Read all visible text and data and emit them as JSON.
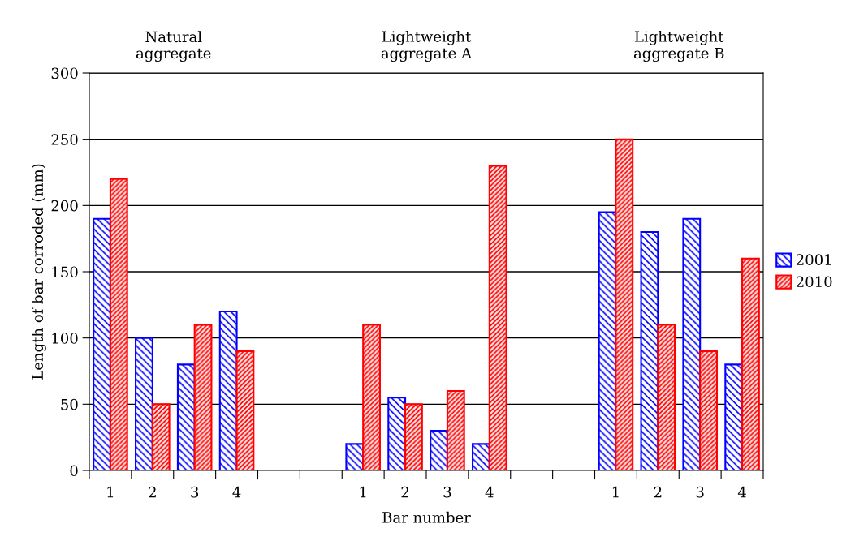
{
  "chart_data": {
    "type": "bar",
    "xlabel": "Bar number",
    "ylabel": "Length of bar corroded (mm)",
    "annotations": [
      "Natural\naggregate",
      "Lightweight\naggregate A",
      "Lightweight\naggregate B"
    ],
    "categories": [
      "1",
      "2",
      "3",
      "4",
      null,
      null,
      "1",
      "2",
      "3",
      "4",
      null,
      null,
      "1",
      "2",
      "3",
      "4"
    ],
    "series": [
      {
        "name": "2001",
        "color": "#0000ff",
        "values": [
          190,
          100,
          80,
          120,
          null,
          null,
          20,
          55,
          30,
          20,
          null,
          null,
          195,
          180,
          190,
          80
        ]
      },
      {
        "name": "2010",
        "color": "#ff0000",
        "values": [
          220,
          50,
          110,
          90,
          null,
          null,
          110,
          50,
          60,
          230,
          null,
          null,
          250,
          110,
          90,
          160
        ]
      }
    ],
    "ylim": [
      0,
      300
    ],
    "yticks": [
      0,
      50,
      100,
      150,
      200,
      250,
      300
    ],
    "grid": "y",
    "legend": "right"
  }
}
